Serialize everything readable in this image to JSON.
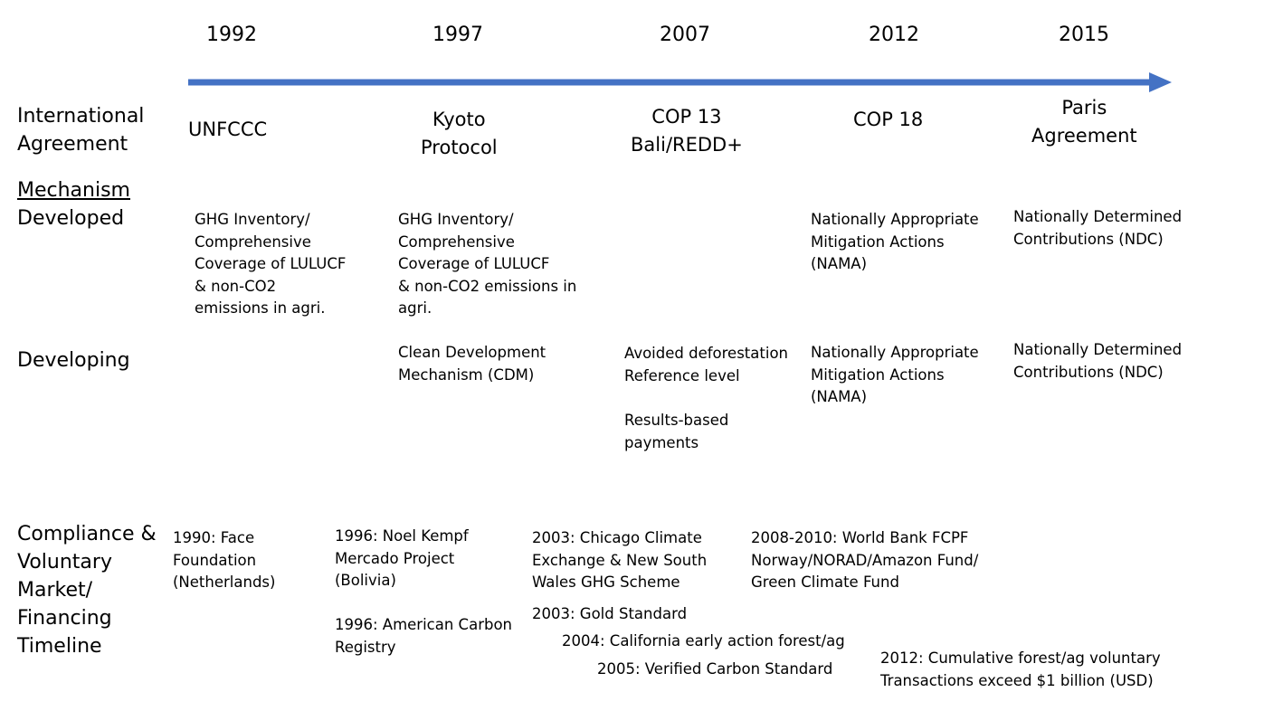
{
  "years": [
    "1992",
    "1997",
    "2007",
    "2012",
    "2015"
  ],
  "row_labels": {
    "international_agreement": "International\nAgreement",
    "mechanism_title": "Mechanism",
    "developed": "Developed",
    "developing": "Developing",
    "compliance": "Compliance &\nVoluntary\nMarket/\nFinancing\nTimeline"
  },
  "agreements": [
    "UNFCCC",
    "Kyoto\nProtocol",
    "COP 13\nBali/REDD+",
    "COP 18",
    "Paris\nAgreement"
  ],
  "developed": [
    "GHG Inventory/\nComprehensive\nCoverage of LULUCF\n& non-CO2\nemissions in agri.",
    "GHG Inventory/\nComprehensive\nCoverage of LULUCF\n& non-CO2 emissions in\nagri.",
    "Nationally Appropriate\nMitigation Actions\n(NAMA)",
    "Nationally Determined\nContributions (NDC)"
  ],
  "developing": [
    "Clean Development\nMechanism (CDM)",
    "Avoided deforestation\nReference level",
    "Results-based\npayments",
    "Nationally Appropriate\nMitigation Actions\n(NAMA)",
    "Nationally Determined\nContributions (NDC)"
  ],
  "financing": [
    "1990: Face\nFoundation\n(Netherlands)",
    "1996: Noel Kempf\nMercado Project\n(Bolivia)",
    "1996: American Carbon\nRegistry",
    "2003: Chicago Climate\nExchange & New South\nWales GHG Scheme",
    "2003: Gold Standard",
    "2004: California early action forest/ag",
    "2005: Verified Carbon Standard",
    "2008-2010: World Bank FCPF\nNorway/NORAD/Amazon Fund/\nGreen Climate Fund",
    "2012: Cumulative forest/ag voluntary\nTransactions exceed $1 billion (USD)"
  ],
  "colors": {
    "arrow": "#4472C4",
    "text": "#000000",
    "background": "#FFFFFF"
  },
  "icons": {
    "timeline": "right-arrow-icon"
  }
}
